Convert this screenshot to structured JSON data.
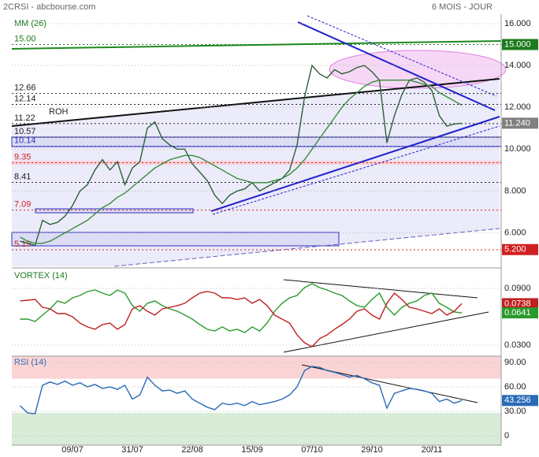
{
  "header": {
    "left": "2CRSI - abcbourse.com",
    "right": "6 MOIS - JOUR"
  },
  "chart_data": [
    {
      "type": "line",
      "title": "MM (26)",
      "annotation": "ROH",
      "ylim": [
        4.4,
        16.45
      ],
      "yticks": [
        {
          "value": 16,
          "label": "16.000"
        },
        {
          "value": 14,
          "label": "14.000"
        },
        {
          "value": 12,
          "label": "12.000"
        },
        {
          "value": 10,
          "label": "10.000"
        },
        {
          "value": 8,
          "label": "8.000"
        },
        {
          "value": 6,
          "label": "6.000"
        }
      ],
      "series": [
        {
          "color": "#2e5e3a",
          "values": [
            5.6,
            5.5,
            5.4,
            6.6,
            6.4,
            6.5,
            6.8,
            7.3,
            8.0,
            8.3,
            9.0,
            9.5,
            9.0,
            9.4,
            8.3,
            9.1,
            9.4,
            11.0,
            11.3,
            10.5,
            10.2,
            10.0,
            10.0,
            9.3,
            8.9,
            8.5,
            7.8,
            7.4,
            7.8,
            8.0,
            8.1,
            8.4,
            8.0,
            8.2,
            8.4,
            8.6,
            9.0,
            10.2,
            12.5,
            14.0,
            13.6,
            13.4,
            13.8,
            13.6,
            13.7,
            13.9,
            14.0,
            13.7,
            13.3,
            10.3,
            11.6,
            12.6,
            13.3,
            13.4,
            13.2,
            12.8,
            11.6,
            11.1,
            11.2,
            11.24
          ]
        },
        {
          "name": "MM (26)",
          "color": "#3a8a3a",
          "values": [
            5.8,
            5.6,
            5.5,
            5.5,
            5.6,
            5.8,
            6.0,
            6.2,
            6.4,
            6.6,
            6.9,
            7.2,
            7.4,
            7.7,
            7.9,
            8.2,
            8.5,
            8.8,
            9.1,
            9.3,
            9.5,
            9.6,
            9.7,
            9.7,
            9.6,
            9.4,
            9.2,
            9.0,
            8.8,
            8.6,
            8.5,
            8.4,
            8.4,
            8.4,
            8.5,
            8.6,
            8.8,
            9.1,
            9.5,
            10.0,
            10.5,
            11.0,
            11.5,
            12.0,
            12.4,
            12.7,
            13.0,
            13.2,
            13.3,
            13.3,
            13.3,
            13.3,
            13.3,
            13.2,
            13.1,
            13.0,
            12.7,
            12.5,
            12.3,
            12.1
          ]
        }
      ],
      "levels": [
        {
          "value": 15,
          "label": "15.00",
          "color": "#1e7a1e"
        },
        {
          "value": 12.66,
          "label": "12.66",
          "color": "#222222"
        },
        {
          "value": 12.14,
          "label": "12.14",
          "color": "#222222"
        },
        {
          "value": 11.22,
          "label": "11.22",
          "color": "#222222"
        },
        {
          "value": 10.57,
          "label": "10.57",
          "color": "#222222"
        },
        {
          "value": 10.14,
          "label": "10.14",
          "color": "#3030c0"
        },
        {
          "value": 9.35,
          "label": "9.35",
          "color": "#d02020"
        },
        {
          "value": 8.41,
          "label": "8.41",
          "color": "#222222"
        },
        {
          "value": 7.09,
          "label": "7.09",
          "color": "#d02020"
        },
        {
          "value": 5.19,
          "label": "5.19",
          "color": "#d02020"
        }
      ],
      "tags": [
        {
          "value": 15,
          "label": "15.000",
          "color": "#1e7a1e"
        },
        {
          "value": 11.24,
          "label": "11.240",
          "color": "#808080"
        },
        {
          "value": 5.2,
          "label": "5.200",
          "color": "#d02020"
        }
      ]
    },
    {
      "type": "line",
      "title": "VORTEX (14)",
      "ylim": [
        0.0183,
        0.1075
      ],
      "yticks": [
        {
          "value": 0.09,
          "label": "0.0900"
        },
        {
          "value": 0.03,
          "label": "0.0300"
        }
      ],
      "series": [
        {
          "color": "#2a9a2a",
          "values": [
            0.0575,
            0.0575,
            0.055,
            0.0617,
            0.0683,
            0.0767,
            0.0742,
            0.08,
            0.0825,
            0.0867,
            0.0883,
            0.085,
            0.0825,
            0.0883,
            0.085,
            0.0717,
            0.0658,
            0.0742,
            0.0767,
            0.0717,
            0.0683,
            0.0658,
            0.0617,
            0.0575,
            0.0517,
            0.0467,
            0.045,
            0.0492,
            0.045,
            0.0467,
            0.0433,
            0.0492,
            0.045,
            0.0533,
            0.0658,
            0.0742,
            0.08,
            0.0825,
            0.0908,
            0.095,
            0.0908,
            0.0883,
            0.085,
            0.0825,
            0.0767,
            0.0717,
            0.07,
            0.0783,
            0.085,
            0.07,
            0.0617,
            0.07,
            0.0742,
            0.0767,
            0.0825,
            0.085,
            0.0742,
            0.07,
            0.065,
            0.0641
          ]
        },
        {
          "color": "#c02020",
          "values": [
            0.0767,
            0.0775,
            0.0783,
            0.07,
            0.0683,
            0.0633,
            0.0633,
            0.06,
            0.0533,
            0.0492,
            0.0467,
            0.0517,
            0.0533,
            0.0467,
            0.0517,
            0.0683,
            0.0717,
            0.0658,
            0.0617,
            0.0683,
            0.07,
            0.0717,
            0.0742,
            0.08,
            0.085,
            0.0867,
            0.085,
            0.08,
            0.08,
            0.0783,
            0.08,
            0.0742,
            0.0783,
            0.0717,
            0.0617,
            0.0575,
            0.0533,
            0.0408,
            0.0325,
            0.0283,
            0.0367,
            0.0408,
            0.0467,
            0.0517,
            0.0575,
            0.0658,
            0.0683,
            0.0617,
            0.0575,
            0.0742,
            0.085,
            0.0783,
            0.07,
            0.0683,
            0.0658,
            0.0633,
            0.0683,
            0.0617,
            0.0658,
            0.0738
          ]
        }
      ],
      "tags": [
        {
          "value": 0.0738,
          "label": "0.0738",
          "color": "#c02020"
        },
        {
          "value": 0.0641,
          "label": "0.0641",
          "color": "#2a9a2a"
        }
      ]
    },
    {
      "type": "line",
      "title": "RSI (14)",
      "ylim": [
        -11.6,
        97.7
      ],
      "yticks": [
        {
          "value": 90,
          "label": "90.00"
        },
        {
          "value": 60,
          "label": "60.00"
        },
        {
          "value": 30,
          "label": "30.00"
        },
        0
      ],
      "bands": [
        {
          "from": 70,
          "to": 97.7,
          "color": "#fad4d4"
        },
        {
          "from": -11.6,
          "to": 28,
          "color": "#d8ecd8"
        }
      ],
      "categories": [
        null,
        null,
        null,
        null,
        null,
        null,
        null,
        "09/07",
        null,
        null,
        null,
        null,
        null,
        null,
        null,
        "31/07",
        null,
        null,
        null,
        null,
        null,
        null,
        null,
        "22/08",
        null,
        null,
        null,
        null,
        null,
        null,
        null,
        "15/09",
        null,
        null,
        null,
        null,
        null,
        null,
        null,
        "07/10",
        null,
        null,
        null,
        null,
        null,
        null,
        null,
        "29/10",
        null,
        null,
        null,
        null,
        null,
        null,
        null,
        "20/11",
        null,
        null,
        null,
        null
      ],
      "series": [
        {
          "color": "#2a6ab8",
          "values": [
            37,
            28,
            27,
            62,
            66,
            63,
            67,
            62,
            65,
            60,
            63,
            58,
            60,
            57,
            62,
            45,
            50,
            72,
            62,
            55,
            56,
            52,
            55,
            45,
            40,
            35,
            32,
            40,
            38,
            40,
            37,
            42,
            38,
            40,
            42,
            45,
            50,
            60,
            80,
            85,
            84,
            80,
            78,
            75,
            72,
            74,
            70,
            65,
            62,
            34,
            52,
            55,
            58,
            57,
            55,
            52,
            42,
            45,
            40,
            43.256
          ]
        }
      ],
      "tags": [
        {
          "value": 43.256,
          "label": "43.256",
          "color": "#2a6ab8"
        }
      ]
    }
  ]
}
